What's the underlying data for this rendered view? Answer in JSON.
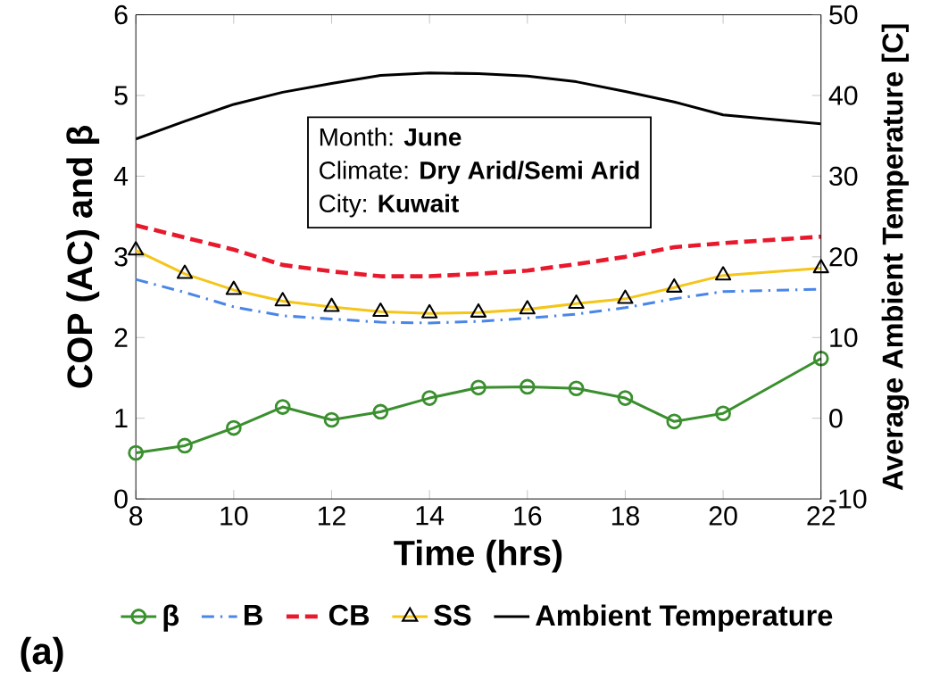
{
  "chart_data": {
    "type": "line",
    "xlabel": "Time (hrs)",
    "ylabel": "COP (AC) and β",
    "y2label": "Average Ambient Temperature [C]",
    "x": [
      8,
      9,
      10,
      11,
      12,
      13,
      14,
      15,
      16,
      17,
      18,
      19,
      20,
      22
    ],
    "series": [
      {
        "name": "β",
        "color": "#3a8f2e",
        "marker": "circle",
        "line_style": "solid",
        "values": [
          0.57,
          0.66,
          0.88,
          1.14,
          0.98,
          1.08,
          1.25,
          1.38,
          1.39,
          1.37,
          1.25,
          0.96,
          1.06,
          1.74
        ]
      },
      {
        "name": "B",
        "color": "#4a86e8",
        "marker": "none",
        "line_style": "dashdot",
        "values": [
          2.72,
          2.56,
          2.38,
          2.27,
          2.23,
          2.19,
          2.18,
          2.2,
          2.24,
          2.29,
          2.37,
          2.48,
          2.57,
          2.6
        ]
      },
      {
        "name": "CB",
        "color": "#e8192c",
        "marker": "none",
        "line_style": "dashed",
        "values": [
          3.39,
          3.24,
          3.09,
          2.9,
          2.82,
          2.76,
          2.76,
          2.79,
          2.83,
          2.91,
          3.0,
          3.12,
          3.17,
          3.25
        ]
      },
      {
        "name": "SS",
        "color": "#f5c518",
        "marker": "triangle",
        "line_style": "solid",
        "values": [
          3.08,
          2.79,
          2.59,
          2.45,
          2.38,
          2.32,
          2.3,
          2.31,
          2.35,
          2.42,
          2.48,
          2.62,
          2.77,
          2.86
        ]
      },
      {
        "name": "Ambient Temperature",
        "color": "#000000",
        "marker": "none",
        "line_style": "solid",
        "axis": "y2",
        "values": [
          34.6,
          36.8,
          38.9,
          40.4,
          41.5,
          42.5,
          42.8,
          42.7,
          42.4,
          41.7,
          40.5,
          39.2,
          37.6,
          36.5
        ]
      }
    ],
    "xlim": [
      8,
      22
    ],
    "xticks": [
      8,
      10,
      12,
      14,
      16,
      18,
      20,
      22
    ],
    "ylim": [
      0,
      6
    ],
    "yticks": [
      0,
      1,
      2,
      3,
      4,
      5,
      6
    ],
    "y2lim": [
      -10,
      50
    ],
    "y2ticks": [
      -10,
      0,
      10,
      20,
      30,
      40,
      50
    ],
    "legend": "bottom",
    "grid": false,
    "annotations": [
      "Month: **June**",
      "Climate: **Dry Arid/Semi Arid**",
      "City: **Kuwait**",
      "(a)"
    ]
  }
}
